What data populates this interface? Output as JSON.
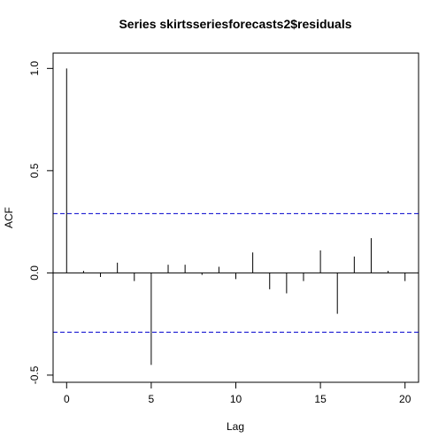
{
  "chart_data": {
    "type": "bar",
    "title": "Series  skirtsseriesforecasts2$residuals",
    "xlabel": "Lag",
    "ylabel": "ACF",
    "xlim": [
      0,
      20
    ],
    "ylim": [
      -0.5,
      1.0
    ],
    "x_ticks": [
      0,
      5,
      10,
      15,
      20
    ],
    "y_ticks": [
      -0.5,
      0.0,
      0.5,
      1.0
    ],
    "x_tick_labels": [
      "0",
      "5",
      "10",
      "15",
      "20"
    ],
    "y_tick_labels": [
      "-0.5",
      "0.0",
      "0.5",
      "1.0"
    ],
    "x": [
      0,
      1,
      2,
      3,
      4,
      5,
      6,
      7,
      8,
      9,
      10,
      11,
      12,
      13,
      14,
      15,
      16,
      17,
      18,
      19,
      20
    ],
    "values": [
      1.0,
      0.01,
      -0.02,
      0.05,
      -0.04,
      -0.45,
      0.04,
      0.04,
      -0.01,
      0.03,
      -0.03,
      0.1,
      -0.08,
      -0.1,
      -0.04,
      0.11,
      -0.2,
      0.08,
      0.17,
      0.01,
      -0.04
    ],
    "confidence_bounds": [
      0.29,
      -0.29
    ],
    "grid": false,
    "colors": {
      "bars": "#000000",
      "confidence_lines": "#0000CD",
      "zero_line": "#000000",
      "frame": "#000000"
    }
  }
}
